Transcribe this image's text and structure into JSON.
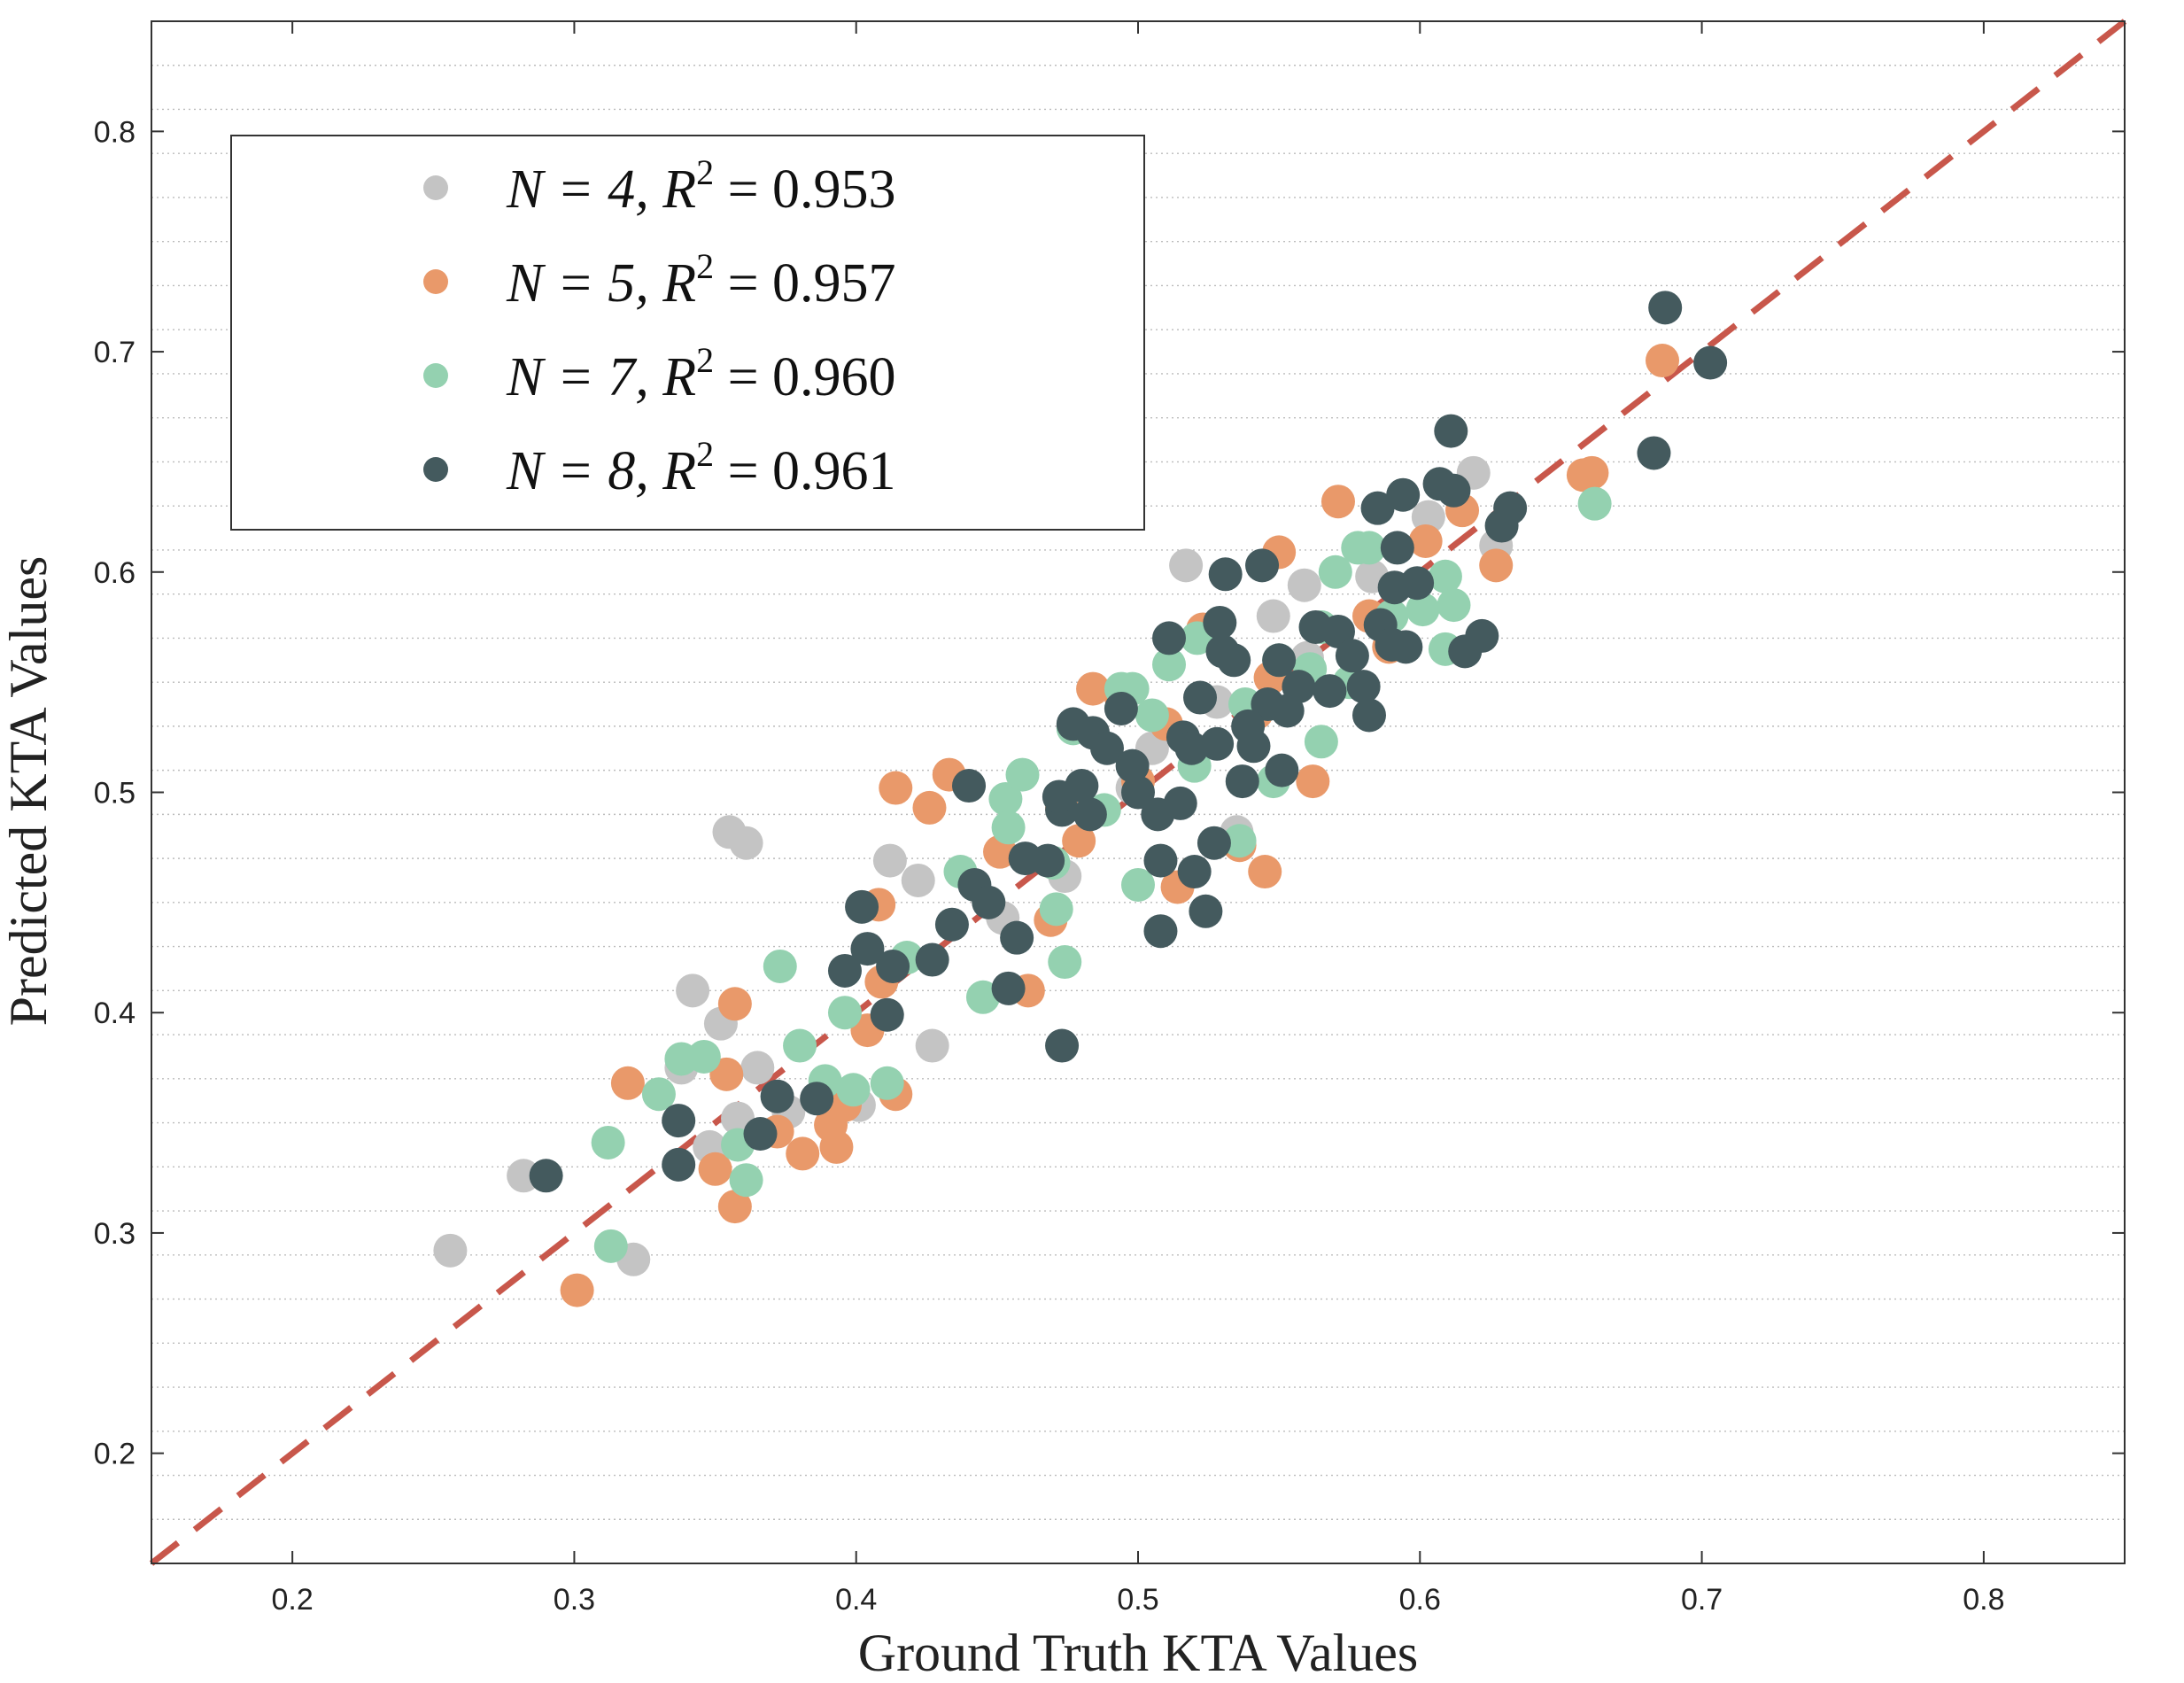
{
  "chart_data": {
    "type": "scatter",
    "title": "",
    "xlabel": "Ground Truth KTA Values",
    "ylabel": "Predicted KTA Values",
    "xlim": [
      0.15,
      0.85
    ],
    "ylim": [
      0.15,
      0.85
    ],
    "xticks": [
      "0.2",
      "0.3",
      "0.4",
      "0.5",
      "0.6",
      "0.7",
      "0.8"
    ],
    "yticks": [
      "0.2",
      "0.3",
      "0.4",
      "0.5",
      "0.6",
      "0.7",
      "0.8"
    ],
    "grid": "horizontal minor dotted",
    "legend_position": "top-left",
    "reference_line": {
      "label": "y = x",
      "color": "#c8574b",
      "style": "dashed"
    },
    "series": [
      {
        "name": "N = 4, R² = 0.953",
        "n_label": "N = 4",
        "r2_label": "R",
        "r2_exp": "2",
        "r2_value": "= 0.953",
        "color": "#c4c4c4",
        "points": [
          [
            0.256,
            0.292
          ],
          [
            0.282,
            0.326
          ],
          [
            0.321,
            0.288
          ],
          [
            0.338,
            0.375
          ],
          [
            0.342,
            0.41
          ],
          [
            0.348,
            0.339
          ],
          [
            0.352,
            0.395
          ],
          [
            0.355,
            0.482
          ],
          [
            0.358,
            0.352
          ],
          [
            0.361,
            0.477
          ],
          [
            0.365,
            0.375
          ],
          [
            0.376,
            0.355
          ],
          [
            0.401,
            0.358
          ],
          [
            0.412,
            0.469
          ],
          [
            0.422,
            0.46
          ],
          [
            0.427,
            0.385
          ],
          [
            0.452,
            0.443
          ],
          [
            0.474,
            0.462
          ],
          [
            0.498,
            0.502
          ],
          [
            0.517,
            0.603
          ],
          [
            0.528,
            0.541
          ],
          [
            0.535,
            0.482
          ],
          [
            0.559,
            0.594
          ],
          [
            0.583,
            0.598
          ],
          [
            0.603,
            0.625
          ],
          [
            0.619,
            0.645
          ],
          [
            0.627,
            0.612
          ],
          [
            0.56,
            0.561
          ],
          [
            0.548,
            0.58
          ],
          [
            0.505,
            0.52
          ]
        ]
      },
      {
        "name": "N = 5, R² = 0.957",
        "n_label": "N = 5",
        "r2_label": "R",
        "r2_exp": "2",
        "r2_value": "= 0.957",
        "color": "#e9996a",
        "points": [
          [
            0.301,
            0.274
          ],
          [
            0.319,
            0.368
          ],
          [
            0.35,
            0.329
          ],
          [
            0.354,
            0.372
          ],
          [
            0.357,
            0.312
          ],
          [
            0.357,
            0.404
          ],
          [
            0.372,
            0.346
          ],
          [
            0.381,
            0.336
          ],
          [
            0.391,
            0.349
          ],
          [
            0.393,
            0.339
          ],
          [
            0.396,
            0.358
          ],
          [
            0.404,
            0.392
          ],
          [
            0.408,
            0.449
          ],
          [
            0.409,
            0.414
          ],
          [
            0.414,
            0.363
          ],
          [
            0.414,
            0.502
          ],
          [
            0.426,
            0.493
          ],
          [
            0.433,
            0.508
          ],
          [
            0.451,
            0.473
          ],
          [
            0.461,
            0.41
          ],
          [
            0.469,
            0.442
          ],
          [
            0.473,
            0.493
          ],
          [
            0.484,
            0.547
          ],
          [
            0.494,
            0.543
          ],
          [
            0.51,
            0.531
          ],
          [
            0.514,
            0.457
          ],
          [
            0.523,
            0.574
          ],
          [
            0.536,
            0.476
          ],
          [
            0.545,
            0.464
          ],
          [
            0.55,
            0.609
          ],
          [
            0.562,
            0.505
          ],
          [
            0.571,
            0.632
          ],
          [
            0.589,
            0.566
          ],
          [
            0.602,
            0.614
          ],
          [
            0.627,
            0.603
          ],
          [
            0.658,
            0.644
          ],
          [
            0.661,
            0.645
          ],
          [
            0.686,
            0.696
          ],
          [
            0.542,
            0.536
          ],
          [
            0.5,
            0.505
          ],
          [
            0.479,
            0.478
          ],
          [
            0.582,
            0.58
          ],
          [
            0.615,
            0.628
          ],
          [
            0.547,
            0.552
          ]
        ]
      },
      {
        "name": "N = 7, R² = 0.960",
        "n_label": "N = 7",
        "r2_label": "R",
        "r2_exp": "2",
        "r2_value": "= 0.960",
        "color": "#94d1b0",
        "points": [
          [
            0.312,
            0.341
          ],
          [
            0.313,
            0.294
          ],
          [
            0.33,
            0.363
          ],
          [
            0.338,
            0.379
          ],
          [
            0.346,
            0.38
          ],
          [
            0.358,
            0.34
          ],
          [
            0.361,
            0.324
          ],
          [
            0.373,
            0.421
          ],
          [
            0.38,
            0.385
          ],
          [
            0.389,
            0.369
          ],
          [
            0.396,
            0.4
          ],
          [
            0.399,
            0.365
          ],
          [
            0.411,
            0.368
          ],
          [
            0.418,
            0.425
          ],
          [
            0.437,
            0.464
          ],
          [
            0.445,
            0.407
          ],
          [
            0.453,
            0.497
          ],
          [
            0.454,
            0.484
          ],
          [
            0.459,
            0.508
          ],
          [
            0.471,
            0.447
          ],
          [
            0.474,
            0.423
          ],
          [
            0.477,
            0.529
          ],
          [
            0.494,
            0.547
          ],
          [
            0.498,
            0.547
          ],
          [
            0.5,
            0.458
          ],
          [
            0.511,
            0.558
          ],
          [
            0.521,
            0.57
          ],
          [
            0.536,
            0.478
          ],
          [
            0.548,
            0.505
          ],
          [
            0.561,
            0.556
          ],
          [
            0.565,
            0.523
          ],
          [
            0.57,
            0.6
          ],
          [
            0.578,
            0.611
          ],
          [
            0.582,
            0.611
          ],
          [
            0.59,
            0.58
          ],
          [
            0.601,
            0.583
          ],
          [
            0.609,
            0.598
          ],
          [
            0.612,
            0.585
          ],
          [
            0.609,
            0.565
          ],
          [
            0.662,
            0.631
          ],
          [
            0.52,
            0.512
          ],
          [
            0.488,
            0.492
          ],
          [
            0.55,
            0.56
          ],
          [
            0.47,
            0.468
          ],
          [
            0.538,
            0.54
          ],
          [
            0.565,
            0.575
          ],
          [
            0.505,
            0.535
          ],
          [
            0.575,
            0.55
          ]
        ]
      },
      {
        "name": "N = 8, R² = 0.961",
        "n_label": "N = 8",
        "r2_label": "R",
        "r2_exp": "2",
        "r2_value": "= 0.961",
        "color": "#445a5e",
        "points": [
          [
            0.29,
            0.326
          ],
          [
            0.337,
            0.331
          ],
          [
            0.337,
            0.351
          ],
          [
            0.366,
            0.345
          ],
          [
            0.372,
            0.362
          ],
          [
            0.386,
            0.361
          ],
          [
            0.396,
            0.419
          ],
          [
            0.402,
            0.448
          ],
          [
            0.404,
            0.429
          ],
          [
            0.411,
            0.399
          ],
          [
            0.413,
            0.421
          ],
          [
            0.427,
            0.424
          ],
          [
            0.434,
            0.44
          ],
          [
            0.44,
            0.503
          ],
          [
            0.442,
            0.458
          ],
          [
            0.447,
            0.45
          ],
          [
            0.454,
            0.411
          ],
          [
            0.457,
            0.434
          ],
          [
            0.46,
            0.47
          ],
          [
            0.468,
            0.469
          ],
          [
            0.473,
            0.385
          ],
          [
            0.473,
            0.492
          ],
          [
            0.477,
            0.531
          ],
          [
            0.48,
            0.503
          ],
          [
            0.484,
            0.527
          ],
          [
            0.489,
            0.52
          ],
          [
            0.494,
            0.538
          ],
          [
            0.5,
            0.5
          ],
          [
            0.507,
            0.49
          ],
          [
            0.508,
            0.469
          ],
          [
            0.508,
            0.437
          ],
          [
            0.511,
            0.57
          ],
          [
            0.516,
            0.525
          ],
          [
            0.519,
            0.52
          ],
          [
            0.52,
            0.464
          ],
          [
            0.522,
            0.543
          ],
          [
            0.524,
            0.446
          ],
          [
            0.527,
            0.477
          ],
          [
            0.529,
            0.577
          ],
          [
            0.53,
            0.564
          ],
          [
            0.531,
            0.599
          ],
          [
            0.534,
            0.56
          ],
          [
            0.537,
            0.505
          ],
          [
            0.541,
            0.521
          ],
          [
            0.544,
            0.603
          ],
          [
            0.546,
            0.54
          ],
          [
            0.55,
            0.56
          ],
          [
            0.551,
            0.51
          ],
          [
            0.553,
            0.537
          ],
          [
            0.557,
            0.548
          ],
          [
            0.563,
            0.575
          ],
          [
            0.568,
            0.546
          ],
          [
            0.571,
            0.573
          ],
          [
            0.576,
            0.562
          ],
          [
            0.58,
            0.548
          ],
          [
            0.582,
            0.535
          ],
          [
            0.585,
            0.629
          ],
          [
            0.586,
            0.576
          ],
          [
            0.59,
            0.567
          ],
          [
            0.591,
            0.593
          ],
          [
            0.592,
            0.611
          ],
          [
            0.594,
            0.635
          ],
          [
            0.595,
            0.566
          ],
          [
            0.599,
            0.595
          ],
          [
            0.611,
            0.664
          ],
          [
            0.612,
            0.637
          ],
          [
            0.616,
            0.564
          ],
          [
            0.622,
            0.571
          ],
          [
            0.629,
            0.621
          ],
          [
            0.632,
            0.629
          ],
          [
            0.683,
            0.654
          ],
          [
            0.687,
            0.72
          ],
          [
            0.703,
            0.695
          ],
          [
            0.498,
            0.512
          ],
          [
            0.483,
            0.49
          ],
          [
            0.539,
            0.53
          ],
          [
            0.528,
            0.522
          ],
          [
            0.472,
            0.498
          ],
          [
            0.515,
            0.495
          ],
          [
            0.607,
            0.64
          ]
        ]
      }
    ]
  }
}
